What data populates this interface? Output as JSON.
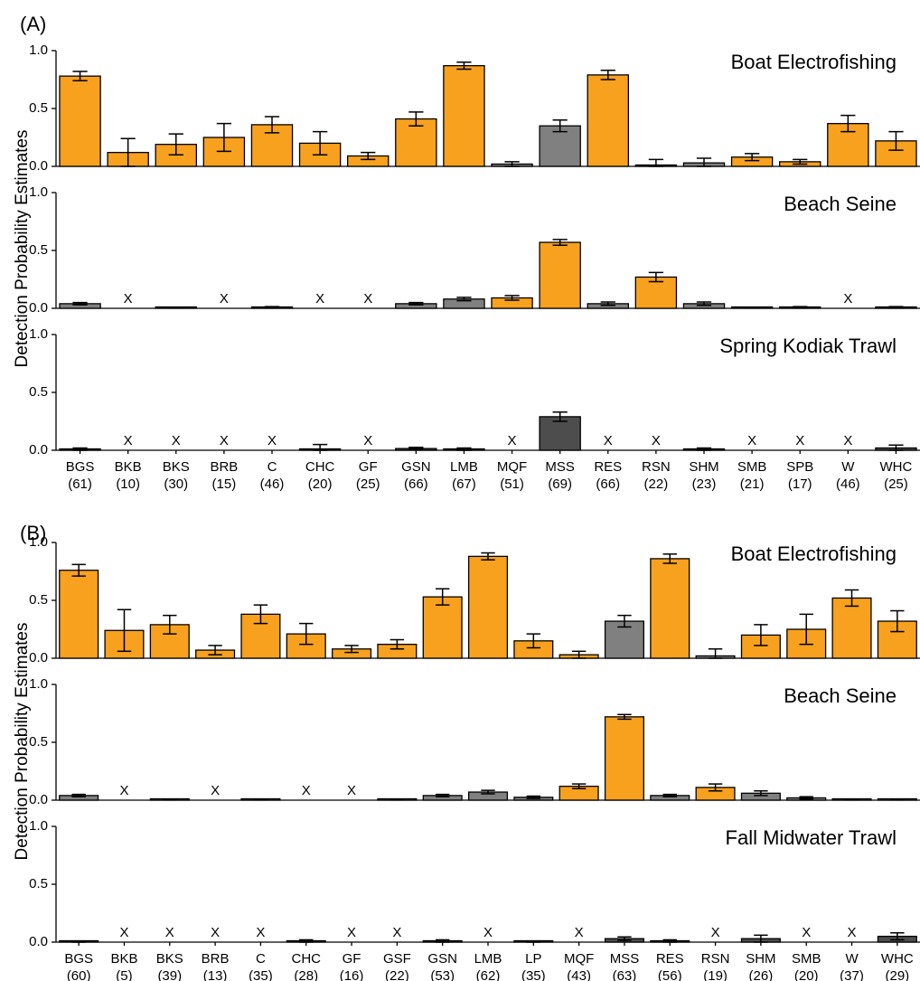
{
  "colors": {
    "detected": "#F7A11E",
    "not_detected": "#808080",
    "dark": "#4D4D4D",
    "axis": "#000000"
  },
  "chart_data": [
    {
      "type": "bar",
      "figure_label": "(A)",
      "ylabel": "Detection Probability Estimates",
      "ylim": [
        0,
        1
      ],
      "yticks": [
        "0.0",
        "0.5",
        "1.0"
      ],
      "categories": [
        "BGS",
        "BKB",
        "BKS",
        "BRB",
        "C",
        "CHC",
        "GF",
        "GSN",
        "LMB",
        "MQF",
        "MSS",
        "RES",
        "RSN",
        "SHM",
        "SMB",
        "SPB",
        "W",
        "WHC"
      ],
      "sample_sizes": [
        "(61)",
        "(10)",
        "(30)",
        "(15)",
        "(46)",
        "(20)",
        "(25)",
        "(66)",
        "(67)",
        "(51)",
        "(69)",
        "(66)",
        "(22)",
        "(23)",
        "(21)",
        "(17)",
        "(46)",
        "(25)"
      ],
      "panels": [
        {
          "title": "Boat Electrofishing",
          "values": [
            0.78,
            0.12,
            0.19,
            0.25,
            0.36,
            0.2,
            0.09,
            0.41,
            0.87,
            0.02,
            0.35,
            0.79,
            0.01,
            0.03,
            0.08,
            0.04,
            0.37,
            0.22
          ],
          "err": [
            0.04,
            0.12,
            0.09,
            0.12,
            0.07,
            0.1,
            0.03,
            0.06,
            0.03,
            0.02,
            0.05,
            0.04,
            0.05,
            0.04,
            0.03,
            0.02,
            0.07,
            0.08
          ],
          "color": [
            "detected",
            "detected",
            "detected",
            "detected",
            "detected",
            "detected",
            "detected",
            "detected",
            "detected",
            "not_detected",
            "not_detected",
            "detected",
            "not_detected",
            "not_detected",
            "detected",
            "detected",
            "detected",
            "detected"
          ],
          "not_detected_x": [
            false,
            false,
            false,
            false,
            false,
            false,
            false,
            false,
            false,
            false,
            false,
            false,
            false,
            false,
            false,
            false,
            false,
            false
          ]
        },
        {
          "title": "Beach Seine",
          "values": [
            0.04,
            0,
            0.005,
            0,
            0.01,
            0,
            0,
            0.04,
            0.08,
            0.09,
            0.57,
            0.04,
            0.27,
            0.04,
            0.005,
            0.01,
            0,
            0.01
          ],
          "err": [
            0.01,
            0,
            0.003,
            0,
            0.005,
            0,
            0,
            0.01,
            0.015,
            0.02,
            0.025,
            0.015,
            0.04,
            0.015,
            0.003,
            0.005,
            0,
            0.005
          ],
          "color": [
            "not_detected",
            "not_detected",
            "not_detected",
            "not_detected",
            "not_detected",
            "not_detected",
            "not_detected",
            "not_detected",
            "not_detected",
            "detected",
            "detected",
            "not_detected",
            "detected",
            "not_detected",
            "not_detected",
            "not_detected",
            "not_detected",
            "not_detected"
          ],
          "not_detected_x": [
            false,
            true,
            false,
            true,
            false,
            true,
            true,
            false,
            false,
            false,
            false,
            false,
            false,
            false,
            false,
            false,
            true,
            false
          ]
        },
        {
          "title": "Spring Kodiak Trawl",
          "values": [
            0.01,
            0,
            0,
            0,
            0,
            0.01,
            0,
            0.015,
            0.01,
            0,
            0.29,
            0,
            0,
            0.01,
            0,
            0,
            0,
            0.02
          ],
          "err": [
            0.01,
            0,
            0,
            0,
            0,
            0.04,
            0,
            0.01,
            0.01,
            0,
            0.04,
            0,
            0,
            0.01,
            0,
            0,
            0,
            0.025
          ],
          "color": [
            "dark",
            "dark",
            "dark",
            "dark",
            "dark",
            "dark",
            "dark",
            "dark",
            "dark",
            "dark",
            "dark",
            "dark",
            "dark",
            "dark",
            "dark",
            "dark",
            "dark",
            "dark"
          ],
          "not_detected_x": [
            false,
            true,
            true,
            true,
            true,
            false,
            true,
            false,
            false,
            true,
            false,
            true,
            true,
            false,
            true,
            true,
            true,
            false
          ]
        }
      ]
    },
    {
      "type": "bar",
      "figure_label": "(B)",
      "ylabel": "Detection Probability Estimates",
      "ylim": [
        0,
        1
      ],
      "yticks": [
        "0.0",
        "0.5",
        "1.0"
      ],
      "categories": [
        "BGS",
        "BKB",
        "BKS",
        "BRB",
        "C",
        "CHC",
        "GF",
        "GSF",
        "GSN",
        "LMB",
        "LP",
        "MQF",
        "MSS",
        "RES",
        "RSN",
        "SHM",
        "SMB",
        "W",
        "WHC"
      ],
      "sample_sizes": [
        "(60)",
        "(5)",
        "(39)",
        "(13)",
        "(35)",
        "(28)",
        "(16)",
        "(22)",
        "(53)",
        "(62)",
        "(35)",
        "(43)",
        "(63)",
        "(56)",
        "(19)",
        "(26)",
        "(20)",
        "(37)",
        "(29)"
      ],
      "panels": [
        {
          "title": "Boat Electrofishing",
          "values": [
            0.76,
            0.24,
            0.29,
            0.07,
            0.38,
            0.21,
            0.08,
            0.12,
            0.53,
            0.88,
            0.15,
            0.03,
            0.32,
            0.86,
            0.02,
            0.2,
            0.25,
            0.52,
            0.32
          ],
          "err": [
            0.05,
            0.18,
            0.08,
            0.04,
            0.08,
            0.09,
            0.03,
            0.04,
            0.07,
            0.03,
            0.06,
            0.03,
            0.05,
            0.04,
            0.06,
            0.09,
            0.13,
            0.07,
            0.09
          ],
          "color": [
            "detected",
            "detected",
            "detected",
            "detected",
            "detected",
            "detected",
            "detected",
            "detected",
            "detected",
            "detected",
            "detected",
            "detected",
            "not_detected",
            "detected",
            "not_detected",
            "detected",
            "detected",
            "detected",
            "detected"
          ],
          "not_detected_x": [
            false,
            false,
            false,
            false,
            false,
            false,
            false,
            false,
            false,
            false,
            false,
            false,
            false,
            false,
            false,
            false,
            false,
            false,
            false
          ]
        },
        {
          "title": "Beach Seine",
          "values": [
            0.04,
            0,
            0.005,
            0,
            0.005,
            0,
            0,
            0.005,
            0.04,
            0.07,
            0.025,
            0.12,
            0.72,
            0.04,
            0.11,
            0.06,
            0.02,
            0.005,
            0.005
          ],
          "err": [
            0.01,
            0,
            0.003,
            0,
            0.003,
            0,
            0,
            0.003,
            0.01,
            0.015,
            0.01,
            0.02,
            0.02,
            0.01,
            0.03,
            0.02,
            0.01,
            0.003,
            0.003
          ],
          "color": [
            "not_detected",
            "not_detected",
            "not_detected",
            "not_detected",
            "not_detected",
            "not_detected",
            "not_detected",
            "not_detected",
            "not_detected",
            "not_detected",
            "not_detected",
            "detected",
            "detected",
            "not_detected",
            "detected",
            "not_detected",
            "not_detected",
            "not_detected",
            "not_detected"
          ],
          "not_detected_x": [
            false,
            true,
            false,
            true,
            false,
            true,
            true,
            false,
            false,
            false,
            false,
            false,
            false,
            false,
            false,
            false,
            false,
            false,
            false
          ]
        },
        {
          "title": "Fall Midwater Trawl",
          "values": [
            0.005,
            0,
            0,
            0,
            0,
            0.01,
            0,
            0,
            0.01,
            0,
            0.005,
            0,
            0.03,
            0.01,
            0,
            0.03,
            0,
            0,
            0.05
          ],
          "err": [
            0.005,
            0,
            0,
            0,
            0,
            0.01,
            0,
            0,
            0.01,
            0,
            0.005,
            0,
            0.015,
            0.01,
            0,
            0.03,
            0,
            0,
            0.03
          ],
          "color": [
            "dark",
            "dark",
            "dark",
            "dark",
            "dark",
            "dark",
            "dark",
            "dark",
            "dark",
            "dark",
            "dark",
            "dark",
            "dark",
            "dark",
            "dark",
            "dark",
            "dark",
            "dark",
            "dark"
          ],
          "not_detected_x": [
            false,
            true,
            true,
            true,
            true,
            false,
            true,
            true,
            false,
            true,
            false,
            true,
            false,
            false,
            true,
            false,
            true,
            true,
            false
          ]
        }
      ]
    }
  ]
}
